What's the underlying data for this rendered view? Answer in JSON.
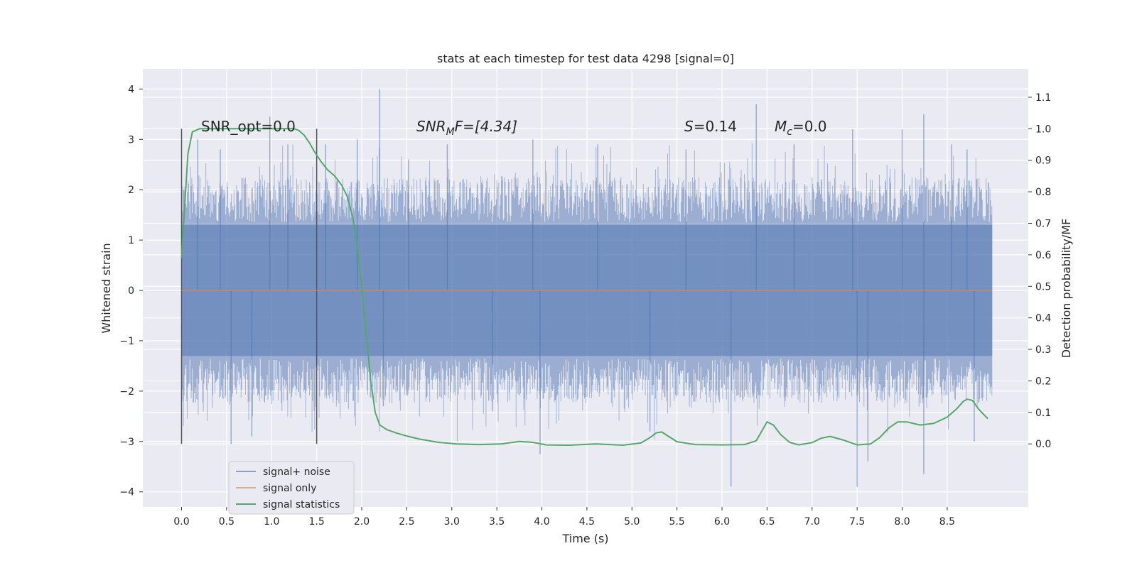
{
  "chart_data": {
    "type": "line",
    "title": "stats at each timestep for test data 4298 [signal=0]",
    "xlabel": "Time (s)",
    "ylabel_left": "Whitened strain",
    "ylabel_right": "Detection probability/MF",
    "xlim": [
      -0.43,
      9.4
    ],
    "ylim_left": [
      -4.3,
      4.4
    ],
    "ylim_right": [
      -0.2,
      1.19
    ],
    "x_ticks": [
      "0.0",
      "0.5",
      "1.0",
      "1.5",
      "2.0",
      "2.5",
      "3.0",
      "3.5",
      "4.0",
      "4.5",
      "5.0",
      "5.5",
      "6.0",
      "6.5",
      "7.0",
      "7.5",
      "8.0",
      "8.5"
    ],
    "y_ticks_left": [
      "4",
      "3",
      "2",
      "1",
      "0",
      "−1",
      "−2",
      "−3",
      "−4"
    ],
    "y_ticks_right": [
      "1.1",
      "1.0",
      "0.9",
      "0.8",
      "0.7",
      "0.6",
      "0.5",
      "0.4",
      "0.3",
      "0.2",
      "0.1",
      "0.0"
    ],
    "grid": true,
    "legend_position": "lower-left",
    "vertical_markers_x": [
      0.0,
      1.5
    ],
    "annotations": {
      "snr_opt": "SNR_opt=0.0",
      "snr_mf_main": "SNR",
      "snr_mf_sub": "M",
      "snr_mf_rest": "F=[4.34]",
      "s_var": "S",
      "s_rest": "=0.14",
      "mc_var": "M",
      "mc_sub": "c",
      "mc_rest": "=0.0"
    },
    "series": [
      {
        "name": "signal+ noise",
        "color": "#4c72b0",
        "axis": "left",
        "noise_envelope": {
          "x_range": [
            0.0,
            9.0
          ],
          "typical_abs": 1.3,
          "peak_max": 4.0,
          "peak_min": -3.9
        },
        "spikes": [
          {
            "x": 0.18,
            "y": 3.0
          },
          {
            "x": 0.43,
            "y": 2.8
          },
          {
            "x": 0.55,
            "y": -3.05
          },
          {
            "x": 0.78,
            "y": -2.9
          },
          {
            "x": 0.98,
            "y": 3.45
          },
          {
            "x": 1.18,
            "y": 2.9
          },
          {
            "x": 1.6,
            "y": 2.9
          },
          {
            "x": 1.95,
            "y": 3.0
          },
          {
            "x": 2.2,
            "y": 4.0
          },
          {
            "x": 2.24,
            "y": -2.3
          },
          {
            "x": 2.52,
            "y": 2.6
          },
          {
            "x": 2.95,
            "y": 2.9
          },
          {
            "x": 3.45,
            "y": -2.4
          },
          {
            "x": 3.9,
            "y": 3.0
          },
          {
            "x": 3.98,
            "y": -3.25
          },
          {
            "x": 4.62,
            "y": 2.9
          },
          {
            "x": 5.2,
            "y": -2.8
          },
          {
            "x": 5.6,
            "y": 2.8
          },
          {
            "x": 6.1,
            "y": -3.9
          },
          {
            "x": 6.38,
            "y": 3.7
          },
          {
            "x": 6.8,
            "y": 2.9
          },
          {
            "x": 7.45,
            "y": 3.2
          },
          {
            "x": 7.5,
            "y": -3.9
          },
          {
            "x": 7.62,
            "y": -3.4
          },
          {
            "x": 8.0,
            "y": 3.2
          },
          {
            "x": 8.24,
            "y": 3.5
          },
          {
            "x": 8.24,
            "y": -3.65
          },
          {
            "x": 8.55,
            "y": 2.9
          },
          {
            "x": 8.72,
            "y": 2.8
          },
          {
            "x": 8.8,
            "y": -3.0
          }
        ]
      },
      {
        "name": "signal only",
        "color": "#dd8452",
        "axis": "left",
        "x": [
          0.0,
          9.0
        ],
        "y": [
          0.0,
          0.0
        ]
      },
      {
        "name": "signal statistics",
        "color": "#55a868",
        "axis": "right",
        "x": [
          0.0,
          0.07,
          0.12,
          0.2,
          0.3,
          0.5,
          0.8,
          1.1,
          1.25,
          1.3,
          1.36,
          1.42,
          1.48,
          1.55,
          1.62,
          1.7,
          1.78,
          1.84,
          1.9,
          1.95,
          2.0,
          2.05,
          2.1,
          2.15,
          2.2,
          2.28,
          2.38,
          2.5,
          2.65,
          2.85,
          3.05,
          3.3,
          3.55,
          3.75,
          3.9,
          4.05,
          4.3,
          4.6,
          4.9,
          5.1,
          5.2,
          5.27,
          5.33,
          5.4,
          5.5,
          5.7,
          6.0,
          6.25,
          6.38,
          6.45,
          6.5,
          6.57,
          6.65,
          6.75,
          6.85,
          7.0,
          7.1,
          7.2,
          7.35,
          7.5,
          7.65,
          7.75,
          7.85,
          7.95,
          8.05,
          8.2,
          8.35,
          8.5,
          8.6,
          8.68,
          8.72,
          8.78,
          8.85,
          8.95
        ],
        "y": [
          0.59,
          0.92,
          0.99,
          1.0,
          1.0,
          1.0,
          1.0,
          1.0,
          1.0,
          0.995,
          0.98,
          0.955,
          0.925,
          0.895,
          0.87,
          0.85,
          0.82,
          0.785,
          0.72,
          0.63,
          0.5,
          0.35,
          0.2,
          0.1,
          0.06,
          0.045,
          0.035,
          0.025,
          0.015,
          0.005,
          0.0,
          -0.002,
          0.0,
          0.008,
          0.005,
          -0.003,
          -0.004,
          0.0,
          -0.004,
          0.003,
          0.02,
          0.035,
          0.038,
          0.025,
          0.007,
          -0.002,
          -0.003,
          -0.002,
          0.01,
          0.045,
          0.07,
          0.06,
          0.03,
          0.005,
          -0.003,
          0.004,
          0.018,
          0.024,
          0.012,
          -0.003,
          0.0,
          0.02,
          0.05,
          0.07,
          0.07,
          0.06,
          0.065,
          0.085,
          0.11,
          0.135,
          0.142,
          0.138,
          0.11,
          0.08
        ]
      }
    ]
  }
}
